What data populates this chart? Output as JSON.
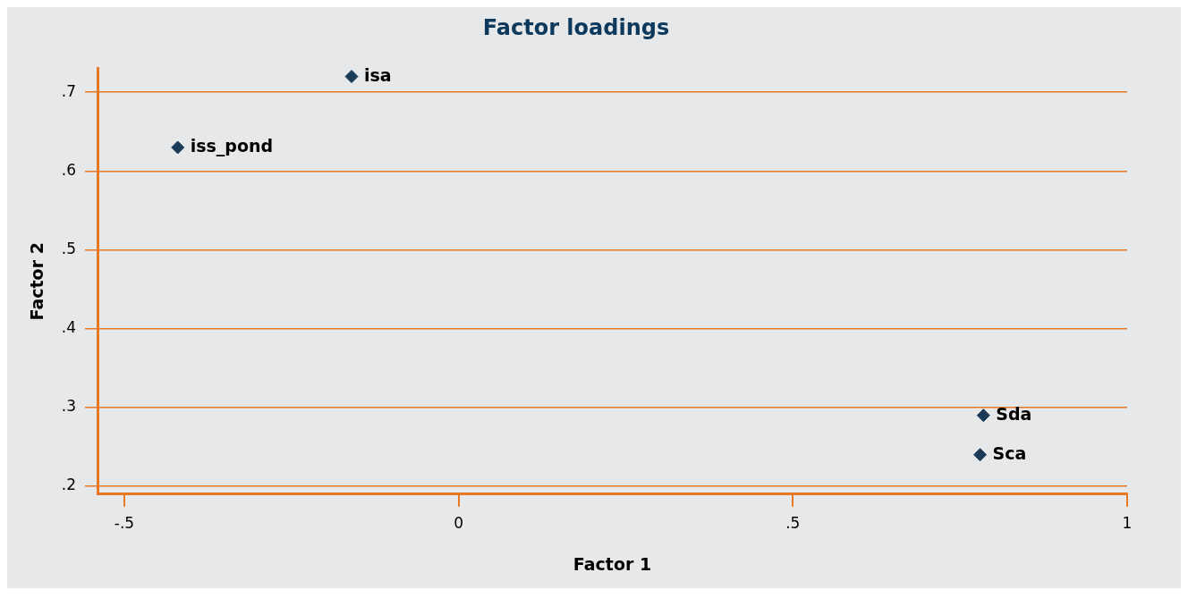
{
  "chart_data": {
    "type": "scatter",
    "title": "Factor loadings",
    "xlabel": "Factor 1",
    "ylabel": "Factor 2",
    "series": [
      {
        "color": "#1b3a57",
        "x": [
          -0.16,
          -0.42,
          0.785,
          0.78
        ],
        "values": [
          0.72,
          0.63,
          0.29,
          0.24
        ]
      }
    ],
    "annotations": [
      {
        "text": "isa",
        "x": -0.16,
        "y": 0.72
      },
      {
        "text": "iss_pond",
        "x": -0.42,
        "y": 0.63
      },
      {
        "text": "Sda",
        "x": 0.785,
        "y": 0.29
      },
      {
        "text": "Sca",
        "x": 0.78,
        "y": 0.24
      }
    ],
    "xlim": [
      -0.54,
      1
    ],
    "xticks": [
      {
        "value": -0.5,
        "label": "-.5"
      },
      0,
      {
        "value": 0.5,
        "label": ".5"
      },
      1
    ],
    "ylim": [
      0.19,
      0.73
    ],
    "yticks": [
      {
        "value": 0.2,
        "label": ".2"
      },
      {
        "value": 0.3,
        "label": ".3"
      },
      {
        "value": 0.4,
        "label": ".4"
      },
      {
        "value": 0.5,
        "label": ".5"
      },
      {
        "value": 0.6,
        "label": ".6"
      },
      {
        "value": 0.7,
        "label": ".7"
      }
    ],
    "grid": "y",
    "legend": false,
    "marker": "diamond"
  }
}
